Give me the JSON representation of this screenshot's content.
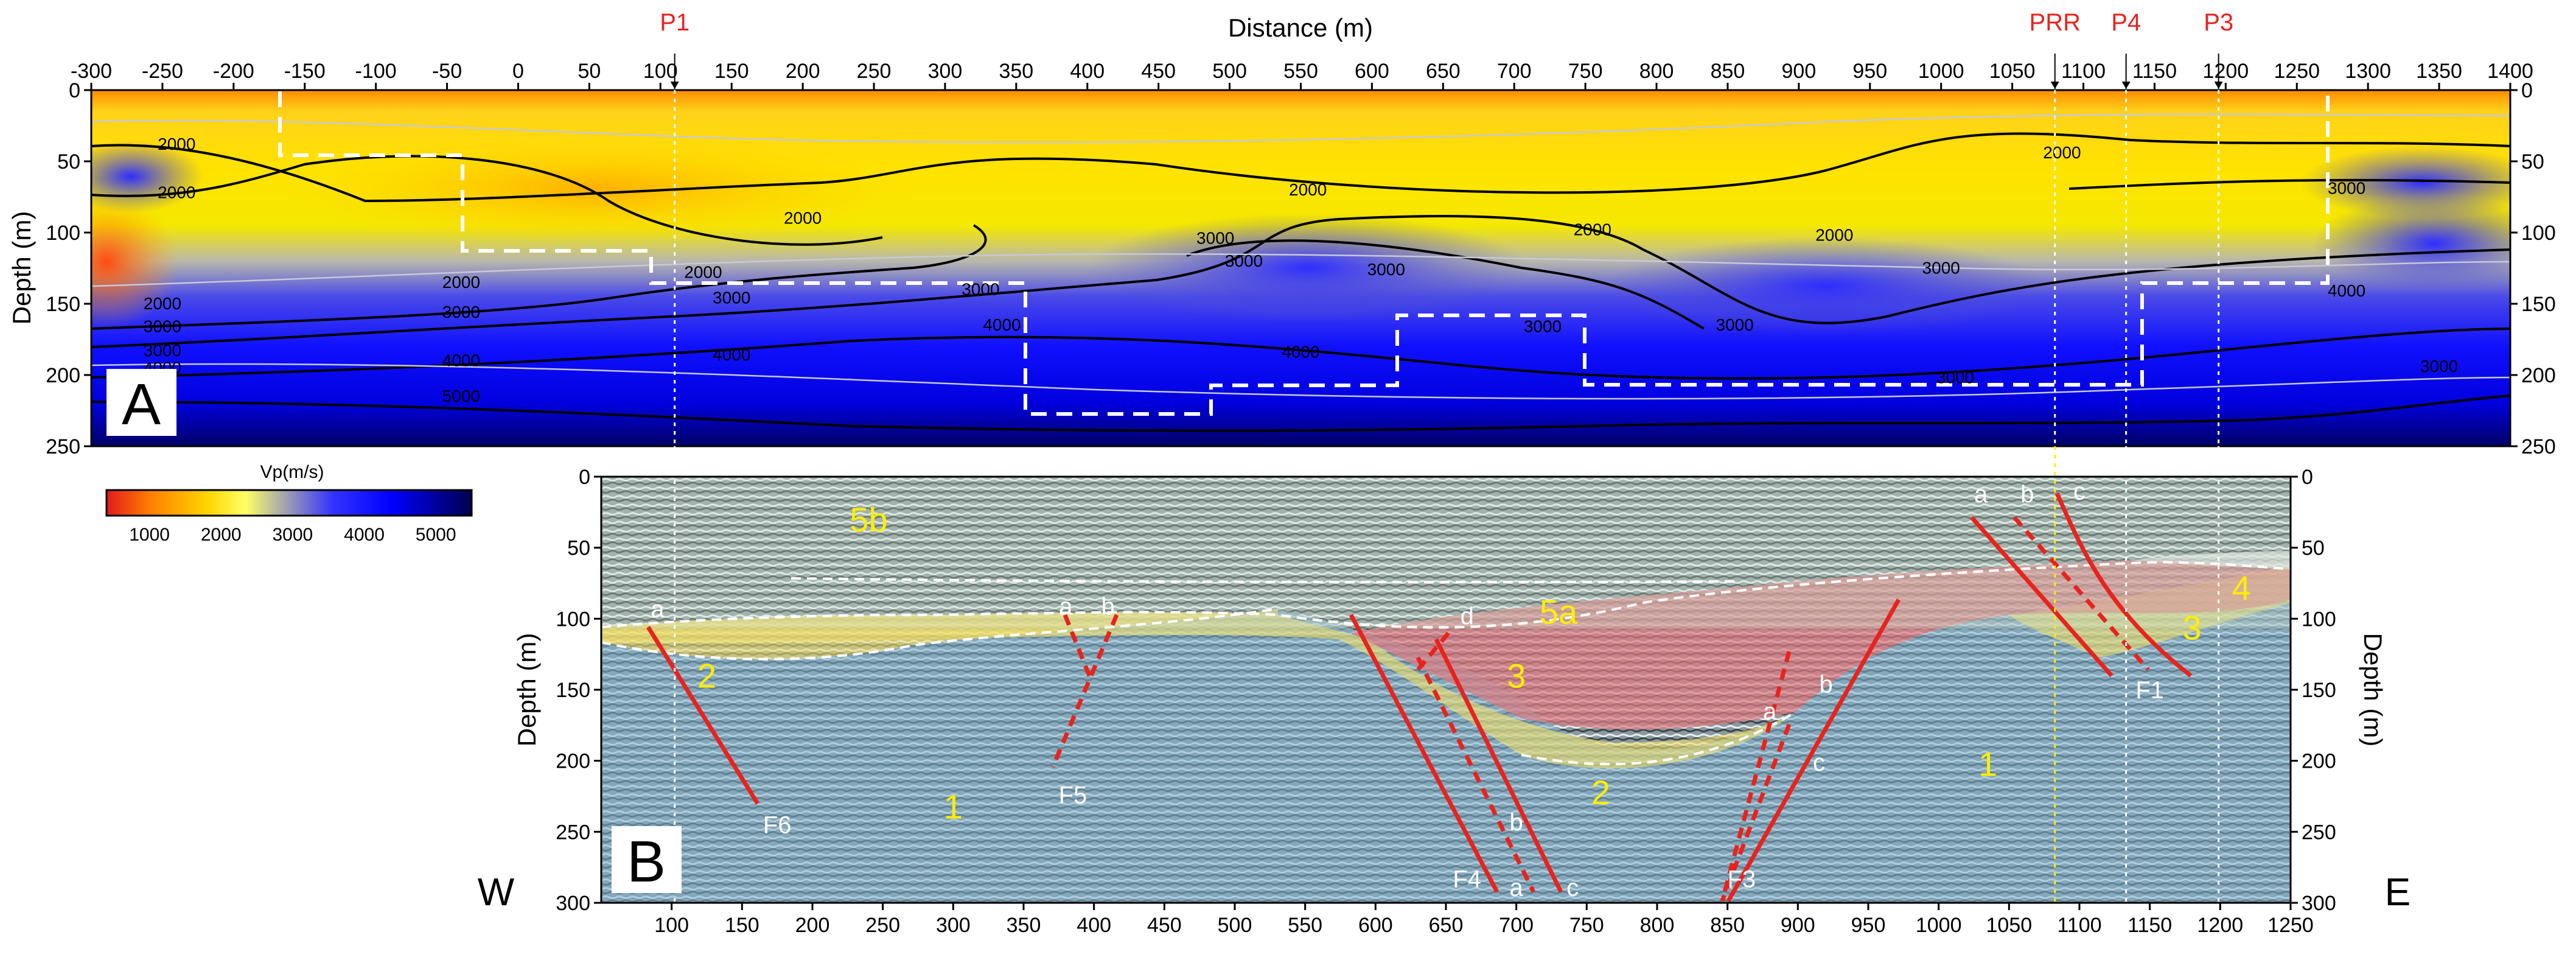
{
  "chart_data": [
    {
      "panel": "A",
      "type": "heatmap",
      "xlabel": "Distance (m)",
      "ylabel": "Depth (m)",
      "xlim": [
        -300,
        1400
      ],
      "ylim": [
        0,
        250
      ],
      "x_ticks": [
        -300,
        -250,
        -200,
        -150,
        -100,
        -50,
        0,
        50,
        100,
        150,
        200,
        250,
        300,
        350,
        400,
        450,
        500,
        550,
        600,
        650,
        700,
        750,
        800,
        850,
        900,
        950,
        1000,
        1050,
        1100,
        1150,
        1200,
        1250,
        1300,
        1350,
        1400
      ],
      "y_ticks": [
        0,
        50,
        100,
        150,
        200,
        250
      ],
      "colorbar": {
        "label": "Vp(m/s)",
        "ticks": [
          1000,
          2000,
          3000,
          4000,
          5000
        ],
        "range": [
          400,
          5500
        ],
        "colors": [
          "#e31a1c",
          "#ff7f00",
          "#ffd700",
          "#ffff66",
          "#aaaaaa",
          "#3333ff",
          "#0000ff",
          "#00004d"
        ]
      },
      "contour_labels": [
        {
          "x": -240,
          "y": 38,
          "value": "2000"
        },
        {
          "x": -240,
          "y": 72,
          "value": "2000"
        },
        {
          "x": -250,
          "y": 150,
          "value": "2000"
        },
        {
          "x": -250,
          "y": 166,
          "value": "3000"
        },
        {
          "x": -250,
          "y": 183,
          "value": "3000"
        },
        {
          "x": -250,
          "y": 195,
          "value": "4000"
        },
        {
          "x": -40,
          "y": 135,
          "value": "2000"
        },
        {
          "x": -40,
          "y": 156,
          "value": "3000"
        },
        {
          "x": -40,
          "y": 190,
          "value": "4000"
        },
        {
          "x": -40,
          "y": 215,
          "value": "5000"
        },
        {
          "x": 130,
          "y": 128,
          "value": "2000"
        },
        {
          "x": 150,
          "y": 146,
          "value": "3000"
        },
        {
          "x": 150,
          "y": 186,
          "value": "4000"
        },
        {
          "x": 200,
          "y": 90,
          "value": "2000"
        },
        {
          "x": 325,
          "y": 140,
          "value": "3000"
        },
        {
          "x": 340,
          "y": 165,
          "value": "4000"
        },
        {
          "x": 555,
          "y": 70,
          "value": "2000"
        },
        {
          "x": 490,
          "y": 104,
          "value": "3000"
        },
        {
          "x": 510,
          "y": 120,
          "value": "3000"
        },
        {
          "x": 550,
          "y": 184,
          "value": "4000"
        },
        {
          "x": 610,
          "y": 126,
          "value": "3000"
        },
        {
          "x": 755,
          "y": 98,
          "value": "2000"
        },
        {
          "x": 720,
          "y": 166,
          "value": "3000"
        },
        {
          "x": 855,
          "y": 165,
          "value": "3000"
        },
        {
          "x": 925,
          "y": 102,
          "value": "2000"
        },
        {
          "x": 1000,
          "y": 125,
          "value": "3000"
        },
        {
          "x": 1010,
          "y": 202,
          "value": "3000"
        },
        {
          "x": 1085,
          "y": 44,
          "value": "2000"
        },
        {
          "x": 1285,
          "y": 69,
          "value": "3000"
        },
        {
          "x": 1285,
          "y": 141,
          "value": "4000"
        },
        {
          "x": 1350,
          "y": 194,
          "value": "3000"
        }
      ],
      "profiles": [
        {
          "name": "P1",
          "x": 110
        },
        {
          "name": "PRR",
          "x": 1080
        },
        {
          "name": "P4",
          "x": 1130
        },
        {
          "name": "P3",
          "x": 1195
        }
      ]
    },
    {
      "panel": "B",
      "type": "image",
      "ylabel": "Depth (m)",
      "xlim": [
        50,
        1250
      ],
      "ylim": [
        0,
        300
      ],
      "x_ticks": [
        100,
        150,
        200,
        250,
        300,
        350,
        400,
        450,
        500,
        550,
        600,
        650,
        700,
        750,
        800,
        850,
        900,
        950,
        1000,
        1050,
        1100,
        1150,
        1200,
        1250
      ],
      "y_ticks": [
        0,
        50,
        100,
        150,
        200,
        250,
        300
      ],
      "units": [
        {
          "label": "5b",
          "x": 240,
          "y": 30
        },
        {
          "label": "5a",
          "x": 730,
          "y": 95
        },
        {
          "label": "4",
          "x": 1215,
          "y": 78
        },
        {
          "label": "3",
          "x": 700,
          "y": 140
        },
        {
          "label": "3",
          "x": 1180,
          "y": 106
        },
        {
          "label": "2",
          "x": 125,
          "y": 140
        },
        {
          "label": "2",
          "x": 760,
          "y": 222
        },
        {
          "label": "1",
          "x": 300,
          "y": 232
        },
        {
          "label": "1",
          "x": 1035,
          "y": 202
        }
      ],
      "faults": [
        {
          "name": "F1",
          "x": 1150,
          "y": 150
        },
        {
          "name": "F3",
          "x": 860,
          "y": 283
        },
        {
          "name": "F4",
          "x": 665,
          "y": 283
        },
        {
          "name": "F5",
          "x": 385,
          "y": 224
        },
        {
          "name": "F6",
          "x": 175,
          "y": 245
        }
      ],
      "fault_strands": [
        {
          "label": "a",
          "x": 90,
          "y": 93
        },
        {
          "label": "a",
          "x": 380,
          "y": 91
        },
        {
          "label": "b",
          "x": 410,
          "y": 91
        },
        {
          "label": "d",
          "x": 665,
          "y": 98
        },
        {
          "label": "a",
          "x": 880,
          "y": 165
        },
        {
          "label": "b",
          "x": 920,
          "y": 146
        },
        {
          "label": "c",
          "x": 915,
          "y": 201
        },
        {
          "label": "b",
          "x": 700,
          "y": 243
        },
        {
          "label": "a",
          "x": 700,
          "y": 289
        },
        {
          "label": "c",
          "x": 740,
          "y": 289
        },
        {
          "label": "a",
          "x": 1030,
          "y": 12
        },
        {
          "label": "b",
          "x": 1063,
          "y": 12
        },
        {
          "label": "c",
          "x": 1100,
          "y": 10
        }
      ]
    }
  ],
  "labels": {
    "west": "W",
    "east": "E"
  },
  "colors": {
    "profile": "#e8231d",
    "fault": "#e8231d",
    "unit_text": "#ffee00",
    "box": "#ffffff"
  }
}
